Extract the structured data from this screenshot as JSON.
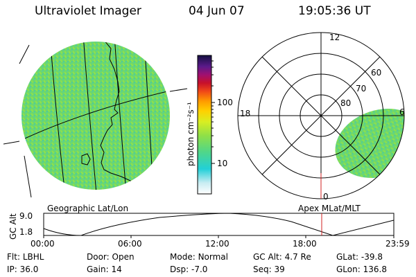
{
  "header": {
    "title": "Ultraviolet Imager",
    "date": "04 Jun 07",
    "time": "19:05:36 UT"
  },
  "colorbar": {
    "label": "photon cm⁻²s⁻¹",
    "ticks": [
      "100",
      "10"
    ]
  },
  "polar": {
    "mlt_labels": {
      "top": "12",
      "left": "18",
      "right": "6",
      "bottom": "0"
    },
    "lat_labels": [
      "60",
      "70",
      "80"
    ]
  },
  "panel_labels": {
    "left": "Geographic Lat/Lon",
    "right": "Apex MLat/MLT"
  },
  "timeline": {
    "ylabel": "GC Alt",
    "y_ticks": [
      "9.0",
      "1.8"
    ],
    "x_ticks": [
      "00:00",
      "06:00",
      "12:00",
      "18:00",
      "23:59"
    ],
    "marker_time": "19:05"
  },
  "info": {
    "flt": {
      "label": "Flt:",
      "value": "LBHL"
    },
    "door": {
      "label": "Door:",
      "value": "Open"
    },
    "mode": {
      "label": "Mode:",
      "value": "Normal"
    },
    "gc_alt": {
      "label": "GC Alt:",
      "value": "4.7 Re"
    },
    "glat": {
      "label": "GLat:",
      "value": "-39.8"
    },
    "ip": {
      "label": "IP:",
      "value": "36.0"
    },
    "gain": {
      "label": "Gain:",
      "value": "14"
    },
    "dsp": {
      "label": "Dsp:",
      "value": "-7.0"
    },
    "seq": {
      "label": "Seq:",
      "value": "39"
    },
    "glon": {
      "label": "GLon:",
      "value": "136.8"
    }
  },
  "colors": {
    "image_green": "#6fd86a",
    "marker_red": "#d22020"
  }
}
